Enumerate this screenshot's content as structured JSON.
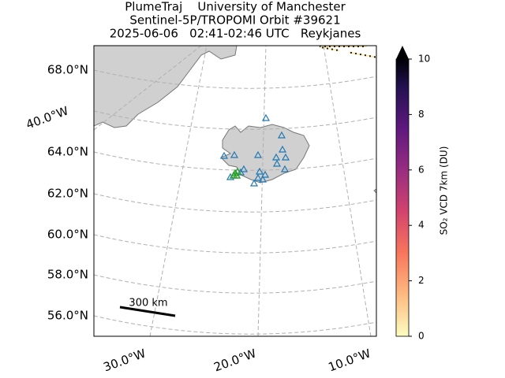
{
  "title": [
    "PlumeTraj    University of Manchester",
    "Sentinel-5P/TROPOMI Orbit #39621",
    "2025-06-06   02:41-02:46 UTC   Reykjanes"
  ],
  "map": {
    "lat_labels": [
      "68.0°N",
      "64.0°N",
      "62.0°N",
      "60.0°N",
      "58.0°N",
      "56.0°N"
    ],
    "lon_labels": [
      "40.0°W",
      "30.0°W",
      "20.0°W",
      "10.0°W"
    ],
    "scale_bar": "300 km"
  },
  "colorbar": {
    "label": "SO₂ VCD 7km (DU)",
    "lim": [
      0,
      10
    ],
    "ticks": [
      0,
      2,
      4,
      6,
      8,
      10
    ],
    "extend": "max"
  }
}
